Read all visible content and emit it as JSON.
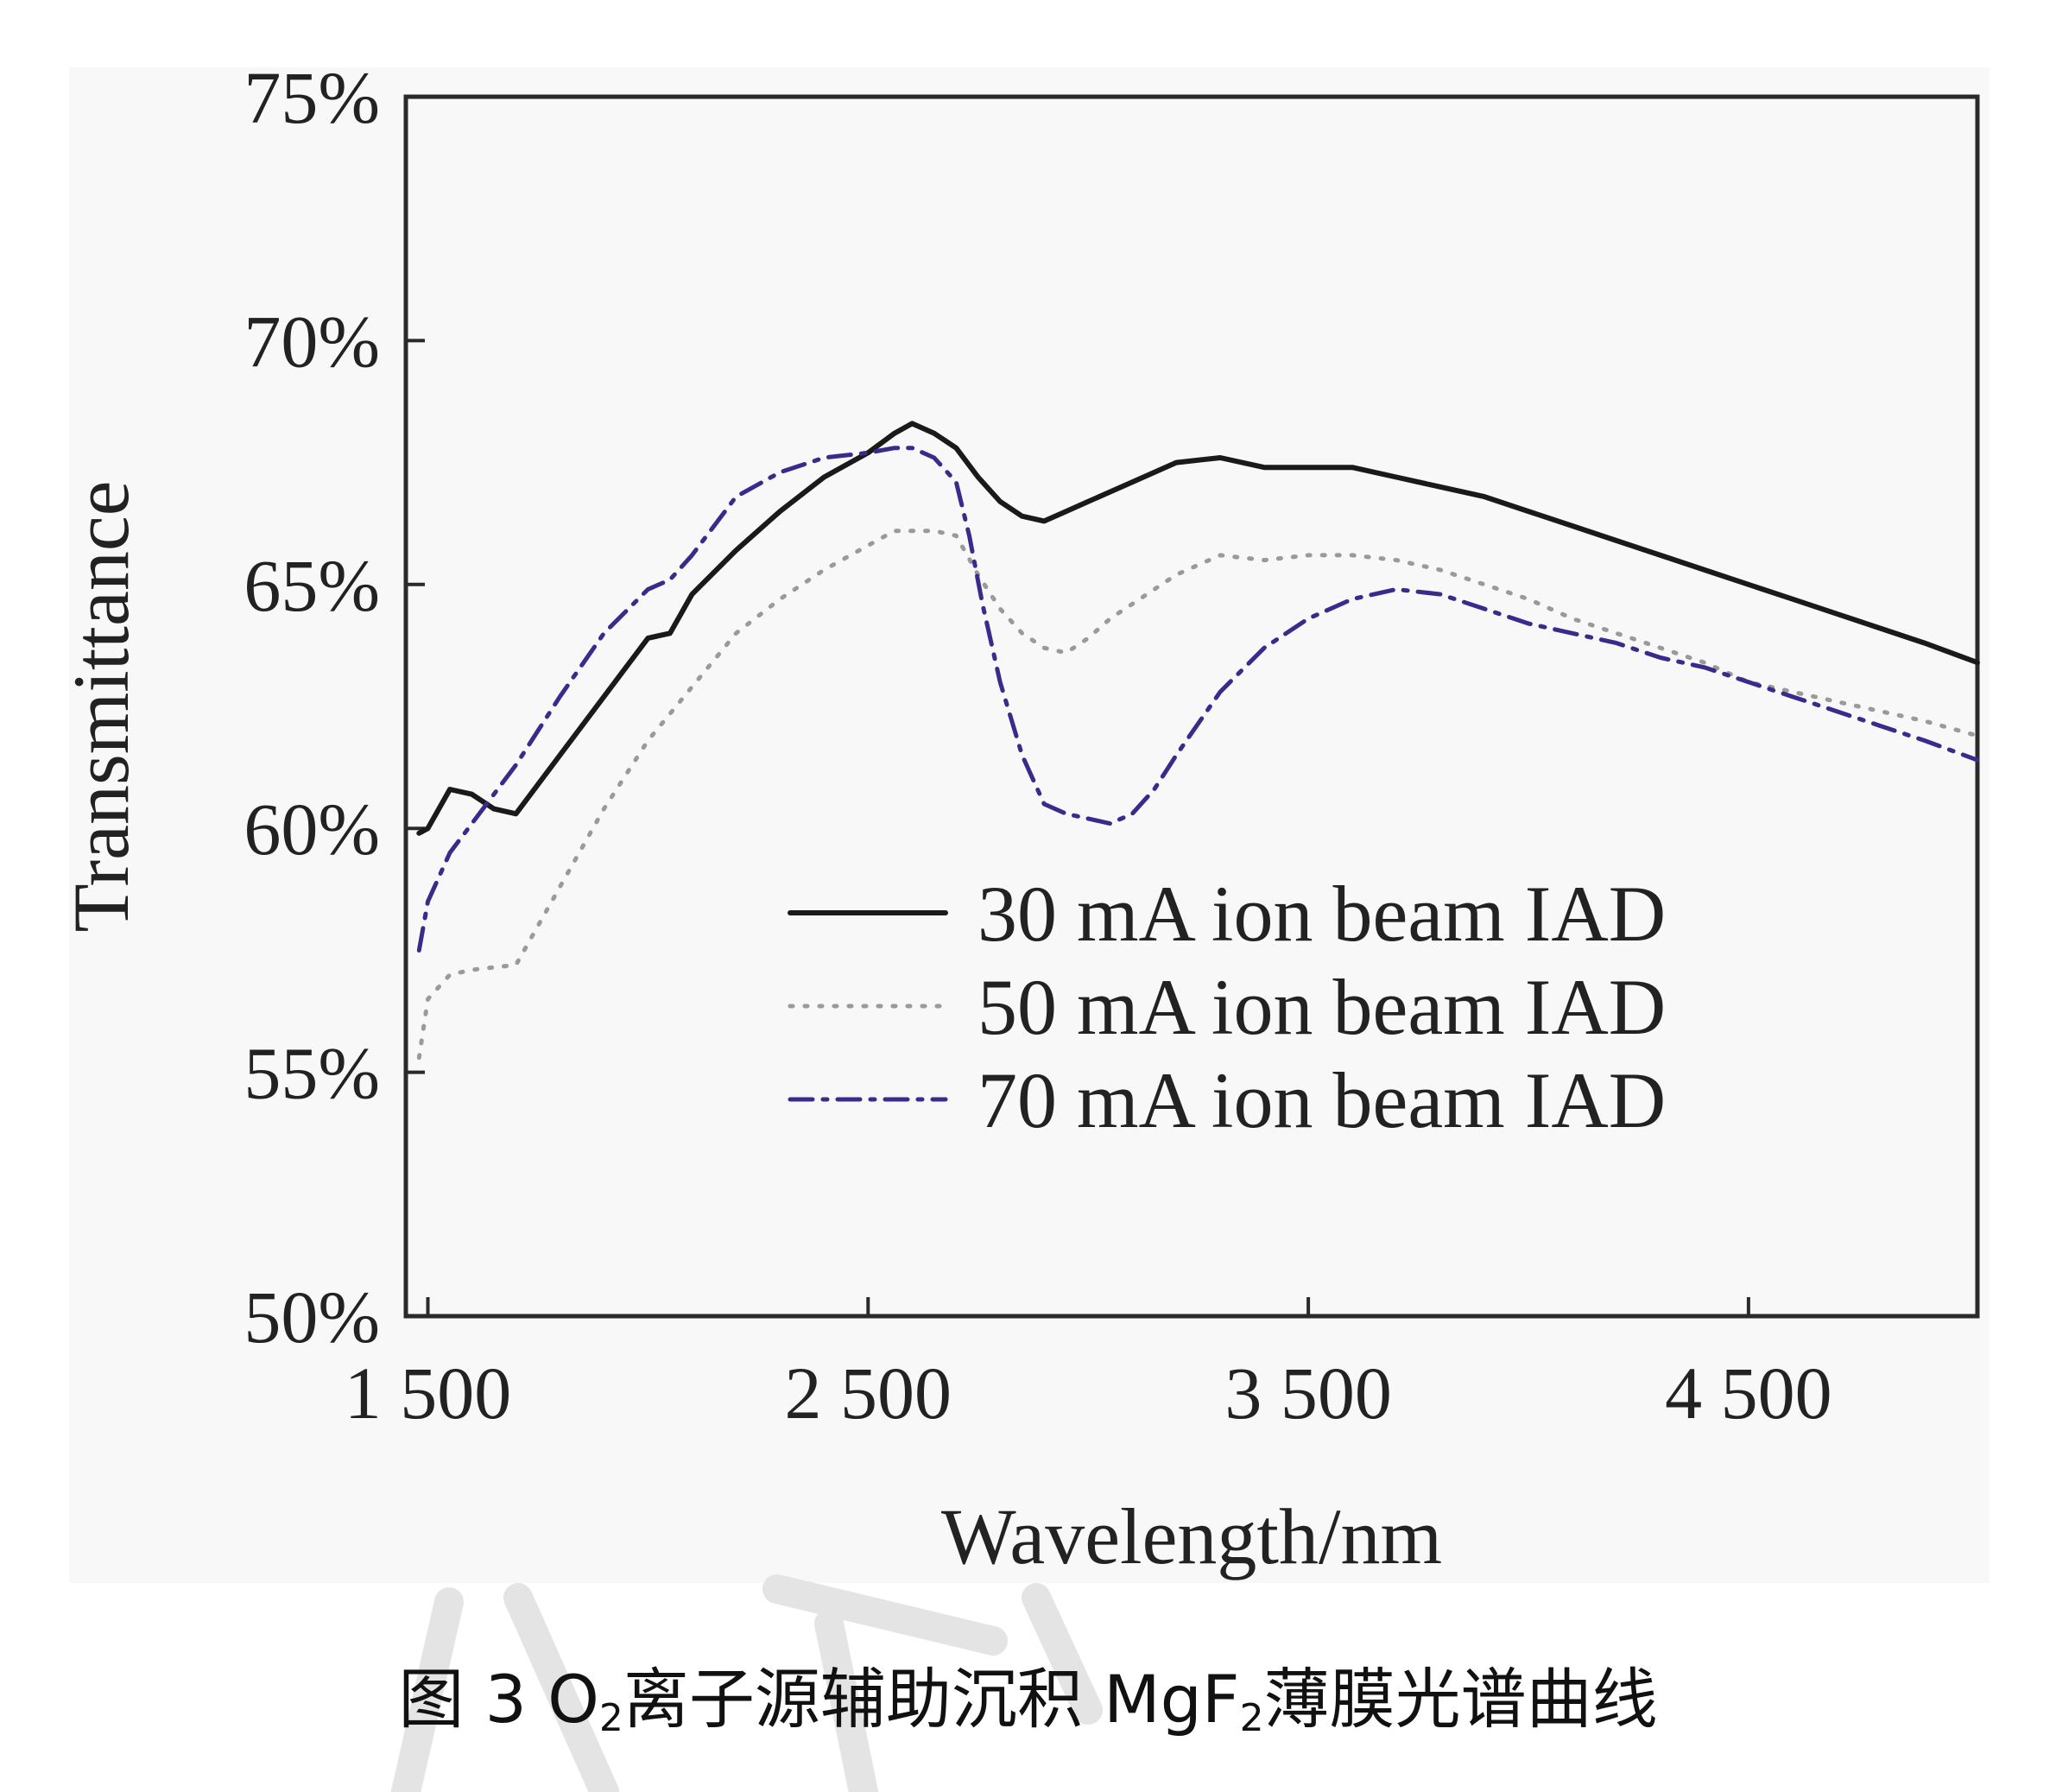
{
  "chart_data": {
    "type": "line",
    "title": "",
    "xlabel": "Wavelength/nm",
    "ylabel": "Transmittance",
    "xlim": [
      1450,
      5020
    ],
    "ylim": [
      50,
      75
    ],
    "x_ticks": [
      1500,
      2500,
      3500,
      4500
    ],
    "x_tick_labels": [
      "1 500",
      "2 500",
      "3 500",
      "4 500"
    ],
    "y_ticks": [
      50,
      55,
      60,
      65,
      70,
      75
    ],
    "y_tick_labels": [
      "50%",
      "55%",
      "60%",
      "65%",
      "70%",
      "75%"
    ],
    "grid": false,
    "legend_position": "center-right",
    "series": [
      {
        "name": "30 mA ion beam IAD",
        "style": "solid",
        "color": "#1a1a1a",
        "x": [
          1480,
          1500,
          1550,
          1600,
          1650,
          1700,
          1800,
          1900,
          2000,
          2050,
          2100,
          2200,
          2300,
          2400,
          2500,
          2560,
          2600,
          2650,
          2700,
          2750,
          2800,
          2850,
          2900,
          2950,
          3000,
          3050,
          3100,
          3200,
          3300,
          3400,
          3500,
          3600,
          3700,
          3800,
          3900,
          4000,
          4100,
          4200,
          4300,
          4400,
          4500,
          4600,
          4700,
          4800,
          4900,
          5020
        ],
        "y": [
          59.9,
          60.0,
          60.8,
          60.7,
          60.4,
          60.3,
          61.5,
          62.7,
          63.9,
          64.0,
          64.8,
          65.7,
          66.5,
          67.2,
          67.7,
          68.1,
          68.3,
          68.1,
          67.8,
          67.2,
          66.7,
          66.4,
          66.3,
          66.5,
          66.7,
          66.9,
          67.1,
          67.5,
          67.6,
          67.4,
          67.4,
          67.4,
          67.2,
          67.0,
          66.8,
          66.5,
          66.2,
          65.9,
          65.6,
          65.3,
          65.0,
          64.7,
          64.4,
          64.1,
          63.8,
          63.4
        ]
      },
      {
        "name": "50 mA ion beam IAD",
        "style": "dotted",
        "color": "#9a9a9a",
        "x": [
          1480,
          1500,
          1550,
          1600,
          1700,
          1800,
          1900,
          2000,
          2100,
          2200,
          2300,
          2400,
          2500,
          2560,
          2600,
          2650,
          2700,
          2750,
          2800,
          2850,
          2900,
          2950,
          3000,
          3050,
          3100,
          3200,
          3300,
          3400,
          3500,
          3600,
          3700,
          3800,
          3900,
          4000,
          4100,
          4200,
          4300,
          4400,
          4500,
          4600,
          4700,
          4800,
          4900,
          5020
        ],
        "y": [
          55.3,
          56.5,
          57.0,
          57.1,
          57.2,
          58.8,
          60.4,
          61.8,
          62.9,
          64.0,
          64.7,
          65.3,
          65.8,
          66.1,
          66.1,
          66.1,
          66.0,
          65.2,
          64.5,
          64.0,
          63.7,
          63.6,
          63.9,
          64.3,
          64.6,
          65.2,
          65.6,
          65.5,
          65.6,
          65.6,
          65.5,
          65.3,
          65.0,
          64.7,
          64.3,
          64.0,
          63.7,
          63.4,
          63.0,
          62.8,
          62.6,
          62.4,
          62.2,
          61.9
        ]
      },
      {
        "name": "70 mA ion beam IAD",
        "style": "dash-dot",
        "color": "#3a2a8c",
        "x": [
          1480,
          1500,
          1550,
          1600,
          1700,
          1800,
          1900,
          2000,
          2050,
          2100,
          2200,
          2300,
          2400,
          2500,
          2560,
          2600,
          2650,
          2700,
          2730,
          2760,
          2800,
          2850,
          2900,
          2950,
          3000,
          3050,
          3100,
          3150,
          3200,
          3300,
          3400,
          3500,
          3600,
          3700,
          3800,
          3900,
          4000,
          4100,
          4200,
          4300,
          4400,
          4500,
          4600,
          4700,
          4800,
          4900,
          5020
        ],
        "y": [
          57.5,
          58.5,
          59.5,
          60.1,
          61.3,
          62.7,
          64.0,
          64.9,
          65.1,
          65.6,
          66.8,
          67.3,
          67.6,
          67.7,
          67.8,
          67.8,
          67.6,
          67.1,
          66.0,
          64.6,
          63.0,
          61.5,
          60.5,
          60.3,
          60.2,
          60.1,
          60.3,
          60.8,
          61.5,
          62.8,
          63.7,
          64.3,
          64.7,
          64.9,
          64.8,
          64.5,
          64.2,
          64.0,
          63.8,
          63.5,
          63.3,
          63.0,
          62.7,
          62.4,
          62.1,
          61.8,
          61.4
        ]
      }
    ]
  },
  "caption": {
    "prefix": "图 3 O",
    "sub1": "2",
    "middle": "离子源辅助沉积 MgF",
    "sub2": "2",
    "suffix": "薄膜光谱曲线"
  }
}
